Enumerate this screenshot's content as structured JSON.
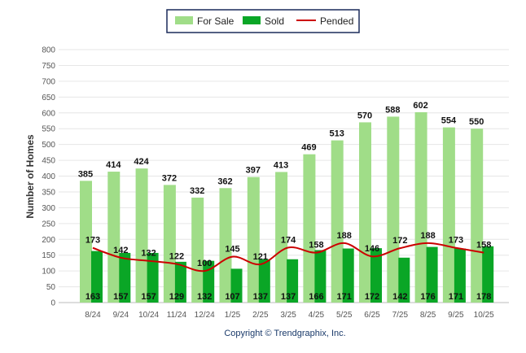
{
  "chart_data": {
    "type": "bar",
    "title": "",
    "xlabel": "",
    "ylabel": "Number of Homes",
    "ylim": [
      0,
      800
    ],
    "yticks": [
      0,
      50,
      100,
      150,
      200,
      250,
      300,
      350,
      400,
      450,
      500,
      550,
      600,
      650,
      700,
      750,
      800
    ],
    "grid": true,
    "legend_position": "top-center",
    "categories": [
      "8/24",
      "9/24",
      "10/24",
      "11/24",
      "12/24",
      "1/25",
      "2/25",
      "3/25",
      "4/25",
      "5/25",
      "6/25",
      "7/25",
      "8/25",
      "9/25",
      "10/25"
    ],
    "series": [
      {
        "name": "For Sale",
        "type": "bar",
        "color": "#a0dd88",
        "values": [
          385,
          414,
          424,
          372,
          332,
          362,
          397,
          413,
          469,
          513,
          570,
          588,
          602,
          554,
          550
        ]
      },
      {
        "name": "Sold",
        "type": "bar",
        "color": "#0aa626",
        "values": [
          163,
          157,
          157,
          129,
          132,
          107,
          137,
          137,
          166,
          171,
          172,
          142,
          176,
          171,
          178
        ]
      },
      {
        "name": "Pended",
        "type": "line",
        "color": "#cc0000",
        "values": [
          173,
          142,
          132,
          122,
          100,
          145,
          121,
          174,
          158,
          188,
          146,
          172,
          188,
          173,
          158
        ]
      }
    ]
  },
  "footer": {
    "copyright": "Copyright © Trendgraphix, Inc."
  }
}
